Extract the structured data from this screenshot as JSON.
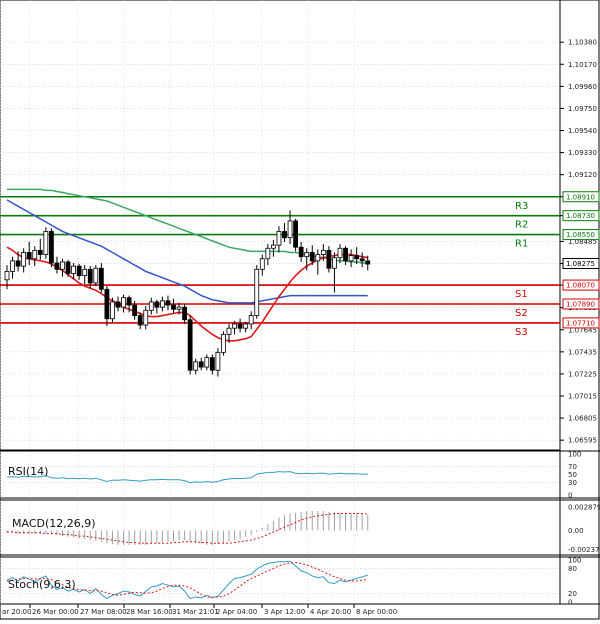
{
  "chart_data": [
    {
      "type": "candlestick",
      "ylim": [
        1.0653,
        1.1061
      ],
      "y_ticks": [
        "1.10380",
        "1.10170",
        "1.09960",
        "1.09750",
        "1.09540",
        "1.09330",
        "1.09120",
        "1.08910",
        "1.08730",
        "1.08485",
        "1.08275",
        "1.08070",
        "1.07855",
        "1.07645",
        "1.07435",
        "1.07225",
        "1.07015",
        "1.06805",
        "1.06595"
      ],
      "x_ticks": [
        "ar 20:00",
        "26 Mar 00:00",
        "27 Mar 08:00",
        "28 Mar 16:00",
        "31 Mar 21:01",
        "2 Apr 04:00",
        "3 Apr 12:00",
        "4 Apr 20:00",
        "8 Apr 00:00"
      ],
      "levels": [
        {
          "name": "R3",
          "value": 1.0891,
          "tag": "1.08910",
          "color": "#0a7a0a"
        },
        {
          "name": "R2",
          "value": 1.0873,
          "tag": "1.08730",
          "color": "#0a7a0a"
        },
        {
          "name": "R1",
          "value": 1.0855,
          "tag": "1.08550",
          "color": "#0a7a0a"
        },
        {
          "name": "S1",
          "value": 1.0807,
          "tag": "1.08070",
          "color": "#d10000"
        },
        {
          "name": "S2",
          "value": 1.0789,
          "tag": "1.07890",
          "color": "#d10000"
        },
        {
          "name": "S3",
          "value": 1.0771,
          "tag": "1.07710",
          "color": "#d10000"
        }
      ],
      "current_price": {
        "value": 1.08275,
        "tag": "1.08275"
      },
      "candles": [
        [
          1.0812,
          1.0826,
          1.0803,
          1.082
        ],
        [
          1.082,
          1.0834,
          1.0813,
          1.083
        ],
        [
          1.083,
          1.0839,
          1.082,
          1.0825
        ],
        [
          1.0825,
          1.0842,
          1.0819,
          1.0838
        ],
        [
          1.0838,
          1.0848,
          1.0826,
          1.0832
        ],
        [
          1.0832,
          1.0844,
          1.0825,
          1.084
        ],
        [
          1.084,
          1.0851,
          1.0831,
          1.0836
        ],
        [
          1.0836,
          1.0862,
          1.0832,
          1.0858
        ],
        [
          1.0858,
          1.0861,
          1.0824,
          1.0828
        ],
        [
          1.0828,
          1.0834,
          1.0818,
          1.0822
        ],
        [
          1.0822,
          1.0832,
          1.0815,
          1.0829
        ],
        [
          1.0829,
          1.0831,
          1.0815,
          1.0818
        ],
        [
          1.0818,
          1.0828,
          1.0813,
          1.0825
        ],
        [
          1.0825,
          1.0827,
          1.0812,
          1.0816
        ],
        [
          1.0816,
          1.0826,
          1.0808,
          1.0822
        ],
        [
          1.0822,
          1.0825,
          1.0804,
          1.0809
        ],
        [
          1.0809,
          1.0826,
          1.0806,
          1.0823
        ],
        [
          1.0823,
          1.0828,
          1.08,
          1.0803
        ],
        [
          1.0803,
          1.0806,
          1.0768,
          1.0775
        ],
        [
          1.0775,
          1.0795,
          1.0771,
          1.0791
        ],
        [
          1.0791,
          1.0796,
          1.0782,
          1.0786
        ],
        [
          1.0786,
          1.0798,
          1.0781,
          1.0795
        ],
        [
          1.0795,
          1.0797,
          1.0781,
          1.0788
        ],
        [
          1.0788,
          1.0792,
          1.0774,
          1.0778
        ],
        [
          1.0778,
          1.0781,
          1.0765,
          1.0769
        ],
        [
          1.0769,
          1.0787,
          1.0765,
          1.0783
        ],
        [
          1.0783,
          1.0795,
          1.0779,
          1.0791
        ],
        [
          1.0791,
          1.0793,
          1.078,
          1.0786
        ],
        [
          1.0786,
          1.0796,
          1.0782,
          1.0792
        ],
        [
          1.0792,
          1.0797,
          1.0783,
          1.0788
        ],
        [
          1.0788,
          1.0794,
          1.078,
          1.0784
        ],
        [
          1.0784,
          1.079,
          1.0779,
          1.0786
        ],
        [
          1.0786,
          1.0789,
          1.077,
          1.0774
        ],
        [
          1.0774,
          1.0778,
          1.0722,
          1.0726
        ],
        [
          1.0726,
          1.0737,
          1.0722,
          1.0734
        ],
        [
          1.0734,
          1.0738,
          1.0726,
          1.0729
        ],
        [
          1.0729,
          1.0741,
          1.0726,
          1.0738
        ],
        [
          1.0738,
          1.0741,
          1.0722,
          1.0726
        ],
        [
          1.0726,
          1.0747,
          1.072,
          1.0743
        ],
        [
          1.0743,
          1.0763,
          1.074,
          1.076
        ],
        [
          1.076,
          1.077,
          1.0752,
          1.0766
        ],
        [
          1.0766,
          1.0773,
          1.076,
          1.077
        ],
        [
          1.077,
          1.0775,
          1.0762,
          1.0766
        ],
        [
          1.0766,
          1.0772,
          1.0762,
          1.077
        ],
        [
          1.077,
          1.0782,
          1.0765,
          1.0778
        ],
        [
          1.0778,
          1.0826,
          1.0775,
          1.0822
        ],
        [
          1.0822,
          1.0836,
          1.0816,
          1.0832
        ],
        [
          1.0832,
          1.0846,
          1.0826,
          1.0842
        ],
        [
          1.0842,
          1.085,
          1.0834,
          1.0845
        ],
        [
          1.0845,
          1.0863,
          1.0838,
          1.0858
        ],
        [
          1.0858,
          1.0866,
          1.0848,
          1.0852
        ],
        [
          1.0852,
          1.0878,
          1.0846,
          1.0868
        ],
        [
          1.0868,
          1.087,
          1.0839,
          1.0843
        ],
        [
          1.0843,
          1.0848,
          1.0829,
          1.0834
        ],
        [
          1.0834,
          1.0842,
          1.0821,
          1.0838
        ],
        [
          1.0838,
          1.0845,
          1.0826,
          1.083
        ],
        [
          1.083,
          1.0841,
          1.0817,
          1.0836
        ],
        [
          1.0836,
          1.0846,
          1.083,
          1.084
        ],
        [
          1.084,
          1.0844,
          1.0819,
          1.0823
        ],
        [
          1.0823,
          1.0838,
          1.08,
          1.0833
        ],
        [
          1.0833,
          1.0846,
          1.0828,
          1.0842
        ],
        [
          1.0842,
          1.0844,
          1.0826,
          1.083
        ],
        [
          1.083,
          1.0841,
          1.0824,
          1.0835
        ],
        [
          1.0835,
          1.0843,
          1.0827,
          1.0832
        ],
        [
          1.0832,
          1.0838,
          1.0824,
          1.083
        ],
        [
          1.083,
          1.0835,
          1.0821,
          1.0827
        ]
      ],
      "ma_red": [
        1.0843,
        1.084,
        1.0836,
        1.0833,
        1.0832,
        1.0831,
        1.083,
        1.0829,
        1.0827,
        1.0824,
        1.0821,
        1.0817,
        1.0813,
        1.0809,
        1.0806,
        1.0804,
        1.0802,
        1.0799,
        1.0795,
        1.0792,
        1.0789,
        1.0786,
        1.0784,
        1.0782,
        1.078,
        1.0778,
        1.0777,
        1.0777,
        1.0778,
        1.0779,
        1.078,
        1.0781,
        1.0781,
        1.0778,
        1.0773,
        1.0768,
        1.0764,
        1.076,
        1.0757,
        1.0755,
        1.0754,
        1.0754,
        1.0755,
        1.0756,
        1.0758,
        1.0765,
        1.0772,
        1.078,
        1.0788,
        1.0796,
        1.0803,
        1.081,
        1.0816,
        1.0821,
        1.0825,
        1.0828,
        1.0831,
        1.0833,
        1.0834,
        1.0835,
        1.0836,
        1.0836,
        1.0836,
        1.0835,
        1.0834,
        1.0833
      ],
      "ma_blue": [
        1.0888,
        1.0885,
        1.0882,
        1.0879,
        1.0876,
        1.0873,
        1.087,
        1.0867,
        1.0864,
        1.0861,
        1.0858,
        1.0856,
        1.0854,
        1.0852,
        1.085,
        1.0848,
        1.0846,
        1.0844,
        1.0841,
        1.0838,
        1.0835,
        1.0832,
        1.0829,
        1.0826,
        1.0823,
        1.082,
        1.0818,
        1.0816,
        1.0814,
        1.0812,
        1.081,
        1.0808,
        1.0806,
        1.0803,
        1.08,
        1.0797,
        1.0795,
        1.0793,
        1.0792,
        1.0791,
        1.079,
        1.079,
        1.079,
        1.079,
        1.079,
        1.0791,
        1.0792,
        1.0793,
        1.0794,
        1.0795,
        1.0796,
        1.0797,
        1.0797,
        1.0797,
        1.0797,
        1.0797,
        1.0797,
        1.0797,
        1.0797,
        1.0797,
        1.0797,
        1.0797,
        1.0797,
        1.0797,
        1.0797,
        1.0797
      ],
      "ma_green": [
        1.0898,
        1.0898,
        1.0898,
        1.0898,
        1.0898,
        1.0898,
        1.0898,
        1.0897,
        1.0897,
        1.0896,
        1.0895,
        1.0894,
        1.0893,
        1.0892,
        1.0891,
        1.089,
        1.0889,
        1.0888,
        1.0887,
        1.0885,
        1.0883,
        1.0881,
        1.0879,
        1.0877,
        1.0875,
        1.0873,
        1.0871,
        1.0869,
        1.0867,
        1.0865,
        1.0863,
        1.0861,
        1.0859,
        1.0857,
        1.0855,
        1.0853,
        1.0851,
        1.0849,
        1.0847,
        1.0845,
        1.0843,
        1.0842,
        1.0841,
        1.084,
        1.0839,
        1.0839,
        1.0839,
        1.0839,
        1.0839,
        1.0839,
        1.0839,
        1.0838,
        1.0838,
        1.0837,
        1.0836,
        1.0835,
        1.0834,
        1.0833,
        1.0832,
        1.0831,
        1.083,
        1.083,
        1.0829,
        1.0829,
        1.0828,
        1.0828
      ]
    },
    {
      "type": "line",
      "title": "RSI(14)",
      "ylim": [
        0,
        100
      ],
      "y_ticks": [
        "100",
        "70",
        "50",
        "30",
        "0"
      ],
      "values": [
        44,
        45,
        43,
        46,
        45,
        44,
        45,
        47,
        42,
        41,
        42,
        40,
        41,
        40,
        41,
        39,
        41,
        37,
        33,
        36,
        36,
        37,
        36,
        35,
        34,
        36,
        37,
        37,
        38,
        37,
        37,
        37,
        35,
        30,
        32,
        31,
        33,
        31,
        33,
        37,
        39,
        41,
        40,
        41,
        42,
        51,
        53,
        55,
        55,
        57,
        56,
        57,
        53,
        52,
        53,
        52,
        53,
        53,
        51,
        52,
        53,
        52,
        52,
        52,
        51,
        51
      ]
    },
    {
      "type": "bar",
      "title": "MACD(12,26,9)",
      "ylim": [
        -0.0028,
        0.0034
      ],
      "y_ticks": [
        "0.002879",
        "0.00",
        "-0.002379"
      ],
      "values": [
        -0.0003,
        -0.0003,
        -0.0004,
        -0.0004,
        -0.0004,
        -0.0004,
        -0.0004,
        -0.0004,
        -0.0005,
        -0.0006,
        -0.0007,
        -0.0008,
        -0.0009,
        -0.001,
        -0.0011,
        -0.0012,
        -0.0013,
        -0.0014,
        -0.0016,
        -0.0017,
        -0.0018,
        -0.0018,
        -0.0018,
        -0.0018,
        -0.0018,
        -0.0018,
        -0.0017,
        -0.0016,
        -0.0015,
        -0.0014,
        -0.0013,
        -0.0012,
        -0.0012,
        -0.0014,
        -0.0016,
        -0.0017,
        -0.0018,
        -0.0018,
        -0.0017,
        -0.0016,
        -0.0014,
        -0.0012,
        -0.001,
        -0.0008,
        -0.0006,
        -0.0002,
        0.0003,
        0.0008,
        0.0012,
        0.0016,
        0.0019,
        0.0021,
        0.0022,
        0.0023,
        0.0024,
        0.0024,
        0.0024,
        0.0024,
        0.0023,
        0.0023,
        0.0022,
        0.0022,
        0.0021,
        0.0021,
        0.002,
        0.0019
      ],
      "signal": [
        -0.0002,
        -0.0002,
        -0.0003,
        -0.0003,
        -0.0003,
        -0.0003,
        -0.0003,
        -0.0004,
        -0.0004,
        -0.0004,
        -0.0005,
        -0.0005,
        -0.0006,
        -0.0007,
        -0.0007,
        -0.0008,
        -0.0009,
        -0.001,
        -0.0011,
        -0.0012,
        -0.0013,
        -0.0014,
        -0.0015,
        -0.0015,
        -0.0016,
        -0.0016,
        -0.0016,
        -0.0016,
        -0.0016,
        -0.0016,
        -0.0015,
        -0.0015,
        -0.0014,
        -0.0014,
        -0.0014,
        -0.0015,
        -0.0015,
        -0.0016,
        -0.0016,
        -0.0016,
        -0.0016,
        -0.0015,
        -0.0014,
        -0.0013,
        -0.0012,
        -0.001,
        -0.0008,
        -0.0005,
        -0.0002,
        0.0001,
        0.0004,
        0.0007,
        0.001,
        0.0013,
        0.0015,
        0.0017,
        0.0018,
        0.0019,
        0.002,
        0.0021,
        0.0021,
        0.0021,
        0.0021,
        0.0021,
        0.0021,
        0.002
      ]
    },
    {
      "type": "line",
      "title": "Stoch(9,6,3)",
      "ylim": [
        0,
        100
      ],
      "y_ticks": [
        "100",
        "80",
        "20",
        "0"
      ],
      "main": [
        52,
        58,
        50,
        60,
        55,
        48,
        56,
        62,
        40,
        30,
        34,
        26,
        30,
        24,
        30,
        20,
        32,
        18,
        8,
        16,
        20,
        26,
        24,
        18,
        14,
        26,
        36,
        38,
        44,
        40,
        36,
        38,
        26,
        8,
        12,
        10,
        16,
        10,
        14,
        28,
        44,
        56,
        58,
        62,
        66,
        78,
        86,
        92,
        94,
        96,
        96,
        97,
        86,
        74,
        70,
        62,
        58,
        60,
        46,
        44,
        52,
        48,
        52,
        56,
        60,
        64
      ],
      "signal": [
        50,
        52,
        54,
        56,
        56,
        55,
        55,
        56,
        53,
        47,
        41,
        35,
        31,
        29,
        28,
        27,
        27,
        26,
        22,
        18,
        16,
        18,
        21,
        23,
        22,
        21,
        22,
        26,
        32,
        37,
        40,
        40,
        38,
        34,
        26,
        18,
        12,
        11,
        12,
        14,
        20,
        28,
        38,
        48,
        56,
        62,
        68,
        74,
        80,
        86,
        90,
        93,
        94,
        92,
        88,
        83,
        78,
        72,
        66,
        60,
        56,
        52,
        50,
        50,
        52,
        54
      ]
    }
  ]
}
